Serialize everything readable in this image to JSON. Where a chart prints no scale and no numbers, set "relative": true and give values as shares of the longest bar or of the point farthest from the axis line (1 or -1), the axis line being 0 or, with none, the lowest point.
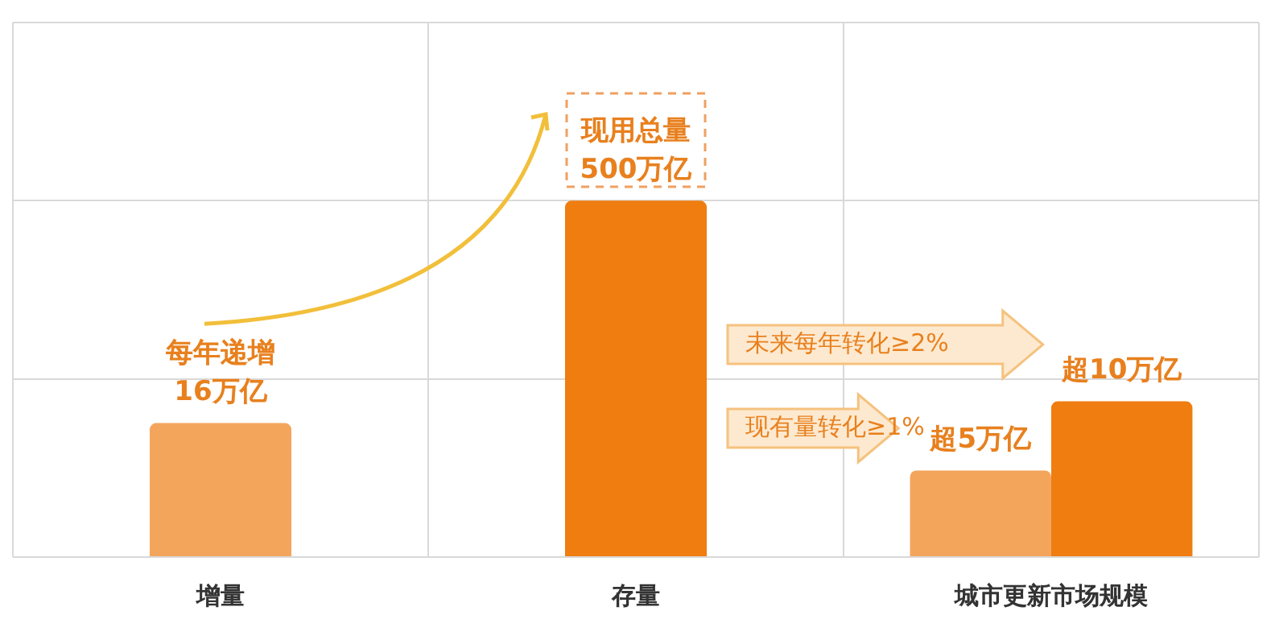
{
  "chart_data": {
    "type": "bar",
    "relative": true,
    "categories": [
      "增量",
      "存量",
      "城市更新市场规模"
    ],
    "series": [
      {
        "color": "#f4a55c",
        "values": [
          0.376,
          null,
          0.243
        ]
      },
      {
        "color": "#ef7d10",
        "values": [
          null,
          1,
          0.437
        ]
      }
    ],
    "annotations": [
      {
        "text": "每年递增\n16万亿",
        "x": "增量",
        "y": 0.376
      },
      {
        "text": "现用总量\n500万亿",
        "x": "存量",
        "y": 1
      },
      {
        "text": "超5万亿",
        "x": "城市更新市场规模",
        "y": 0.243
      },
      {
        "text": "超10万亿",
        "x": "城市更新市场规模",
        "y": 0.437
      },
      "未来每年转化≥2%",
      "现有量转化≥1%"
    ],
    "grid": true,
    "legend": false
  }
}
